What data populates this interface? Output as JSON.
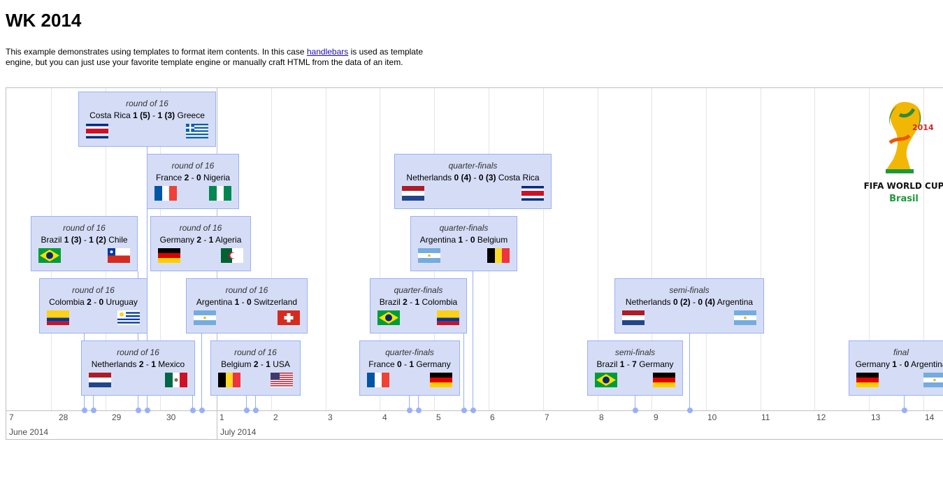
{
  "page": {
    "title": "WK 2014",
    "intro_before_link": "This example demonstrates using templates to format item contents. In this case ",
    "intro_link": "handlebars",
    "intro_after_link": " is used as template engine, but you can just use your favorite template engine or manually craft HTML from the data of an item."
  },
  "axis": {
    "ticks": [
      "7",
      "28",
      "29",
      "30",
      "1",
      "2",
      "3",
      "4",
      "5",
      "6",
      "7",
      "8",
      "9",
      "10",
      "11",
      "12",
      "13",
      "14"
    ],
    "months": [
      "June 2014",
      "July 2014"
    ]
  },
  "logo": {
    "line1": "FIFA WORLD CUP",
    "line2": "Brasil",
    "year": "2014"
  },
  "items": [
    {
      "round": "round of 16",
      "team1": "Costa Rica",
      "score1": "1 (5)",
      "score2": "1 (3)",
      "team2": "Greece",
      "flag1": "costa-rica",
      "flag2": "greece"
    },
    {
      "round": "round of 16",
      "team1": "France",
      "score1": "2",
      "score2": "0",
      "team2": "Nigeria",
      "flag1": "france",
      "flag2": "nigeria"
    },
    {
      "round": "round of 16",
      "team1": "Brazil",
      "score1": "1 (3)",
      "score2": "1 (2)",
      "team2": "Chile",
      "flag1": "brazil",
      "flag2": "chile"
    },
    {
      "round": "round of 16",
      "team1": "Germany",
      "score1": "2",
      "score2": "1",
      "team2": "Algeria",
      "flag1": "germany",
      "flag2": "algeria"
    },
    {
      "round": "round of 16",
      "team1": "Colombia",
      "score1": "2",
      "score2": "0",
      "team2": "Uruguay",
      "flag1": "colombia",
      "flag2": "uruguay"
    },
    {
      "round": "round of 16",
      "team1": "Argentina",
      "score1": "1",
      "score2": "0",
      "team2": "Switzerland",
      "flag1": "argentina",
      "flag2": "switzerland"
    },
    {
      "round": "round of 16",
      "team1": "Netherlands",
      "score1": "2",
      "score2": "1",
      "team2": "Mexico",
      "flag1": "netherlands",
      "flag2": "mexico"
    },
    {
      "round": "round of 16",
      "team1": "Belgium",
      "score1": "2",
      "score2": "1",
      "team2": "USA",
      "flag1": "belgium",
      "flag2": "usa"
    },
    {
      "round": "quarter-finals",
      "team1": "Netherlands",
      "score1": "0 (4)",
      "score2": "0 (3)",
      "team2": "Costa Rica",
      "flag1": "netherlands",
      "flag2": "costa-rica"
    },
    {
      "round": "quarter-finals",
      "team1": "Argentina",
      "score1": "1",
      "score2": "0",
      "team2": "Belgium",
      "flag1": "argentina",
      "flag2": "belgium"
    },
    {
      "round": "quarter-finals",
      "team1": "Brazil",
      "score1": "2",
      "score2": "1",
      "team2": "Colombia",
      "flag1": "brazil",
      "flag2": "colombia"
    },
    {
      "round": "quarter-finals",
      "team1": "France",
      "score1": "0",
      "score2": "1",
      "team2": "Germany",
      "flag1": "france",
      "flag2": "germany"
    },
    {
      "round": "semi-finals",
      "team1": "Netherlands",
      "score1": "0 (2)",
      "score2": "0 (4)",
      "team2": "Argentina",
      "flag1": "netherlands",
      "flag2": "argentina"
    },
    {
      "round": "semi-finals",
      "team1": "Brazil",
      "score1": "1",
      "score2": "7",
      "team2": "Germany",
      "flag1": "brazil",
      "flag2": "germany"
    },
    {
      "round": "final",
      "team1": "Germany",
      "score1": "1",
      "score2": "0",
      "team2": "Argentina",
      "flag1": "germany",
      "flag2": "argentina"
    }
  ]
}
